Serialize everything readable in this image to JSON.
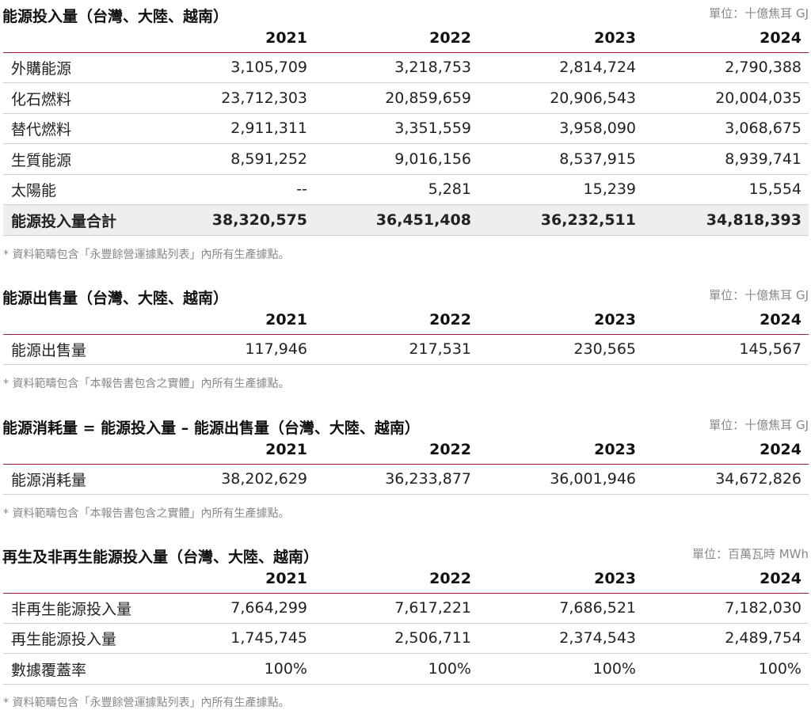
{
  "years": [
    "2021",
    "2022",
    "2023",
    "2024"
  ],
  "sections": [
    {
      "title": "能源投入量（台灣、大陸、越南）",
      "unit": "單位：十億焦耳 GJ",
      "rows": [
        {
          "label": "外購能源",
          "values": [
            "3,105,709",
            "3,218,753",
            "2,814,724",
            "2,790,388"
          ]
        },
        {
          "label": "化石燃料",
          "values": [
            "23,712,303",
            "20,859,659",
            "20,906,543",
            "20,004,035"
          ]
        },
        {
          "label": "替代燃料",
          "values": [
            "2,911,311",
            "3,351,559",
            "3,958,090",
            "3,068,675"
          ]
        },
        {
          "label": "生質能源",
          "values": [
            "8,591,252",
            "9,016,156",
            "8,537,915",
            "8,939,741"
          ]
        },
        {
          "label": "太陽能",
          "values": [
            "--",
            "5,281",
            "15,239",
            "15,554"
          ]
        },
        {
          "label": "能源投入量合計",
          "values": [
            "38,320,575",
            "36,451,408",
            "36,232,511",
            "34,818,393"
          ]
        }
      ],
      "note": "* 資料範疇包含「永豐餘營運據點列表」內所有生產據點。"
    },
    {
      "title": "能源出售量（台灣、大陸、越南）",
      "unit": "單位：十億焦耳 GJ",
      "rows": [
        {
          "label": "能源出售量",
          "values": [
            "117,946",
            "217,531",
            "230,565",
            "145,567"
          ]
        }
      ],
      "note": "* 資料範疇包含「本報告書包含之實體」內所有生產據點。"
    },
    {
      "title": "能源消耗量 = 能源投入量 – 能源出售量（台灣、大陸、越南）",
      "unit": "單位：十億焦耳 GJ",
      "rows": [
        {
          "label": "能源消耗量",
          "values": [
            "38,202,629",
            "36,233,877",
            "36,001,946",
            "34,672,826"
          ]
        }
      ],
      "note": "* 資料範疇包含「本報告書包含之實體」內所有生產據點。"
    },
    {
      "title": "再生及非再生能源投入量（台灣、大陸、越南）",
      "unit": "單位：百萬瓦時 MWh",
      "rows": [
        {
          "label": "非再生能源投入量",
          "values": [
            "7,664,299",
            "7,617,221",
            "7,686,521",
            "7,182,030"
          ]
        },
        {
          "label": "再生能源投入量",
          "values": [
            "1,745,745",
            "2,506,711",
            "2,374,543",
            "2,489,754"
          ]
        },
        {
          "label": "數據覆蓋率",
          "values": [
            "100%",
            "100%",
            "100%",
            "100%"
          ]
        }
      ],
      "note": "* 資料範疇包含「永豐餘營運據點列表」內所有生產據點。"
    }
  ]
}
